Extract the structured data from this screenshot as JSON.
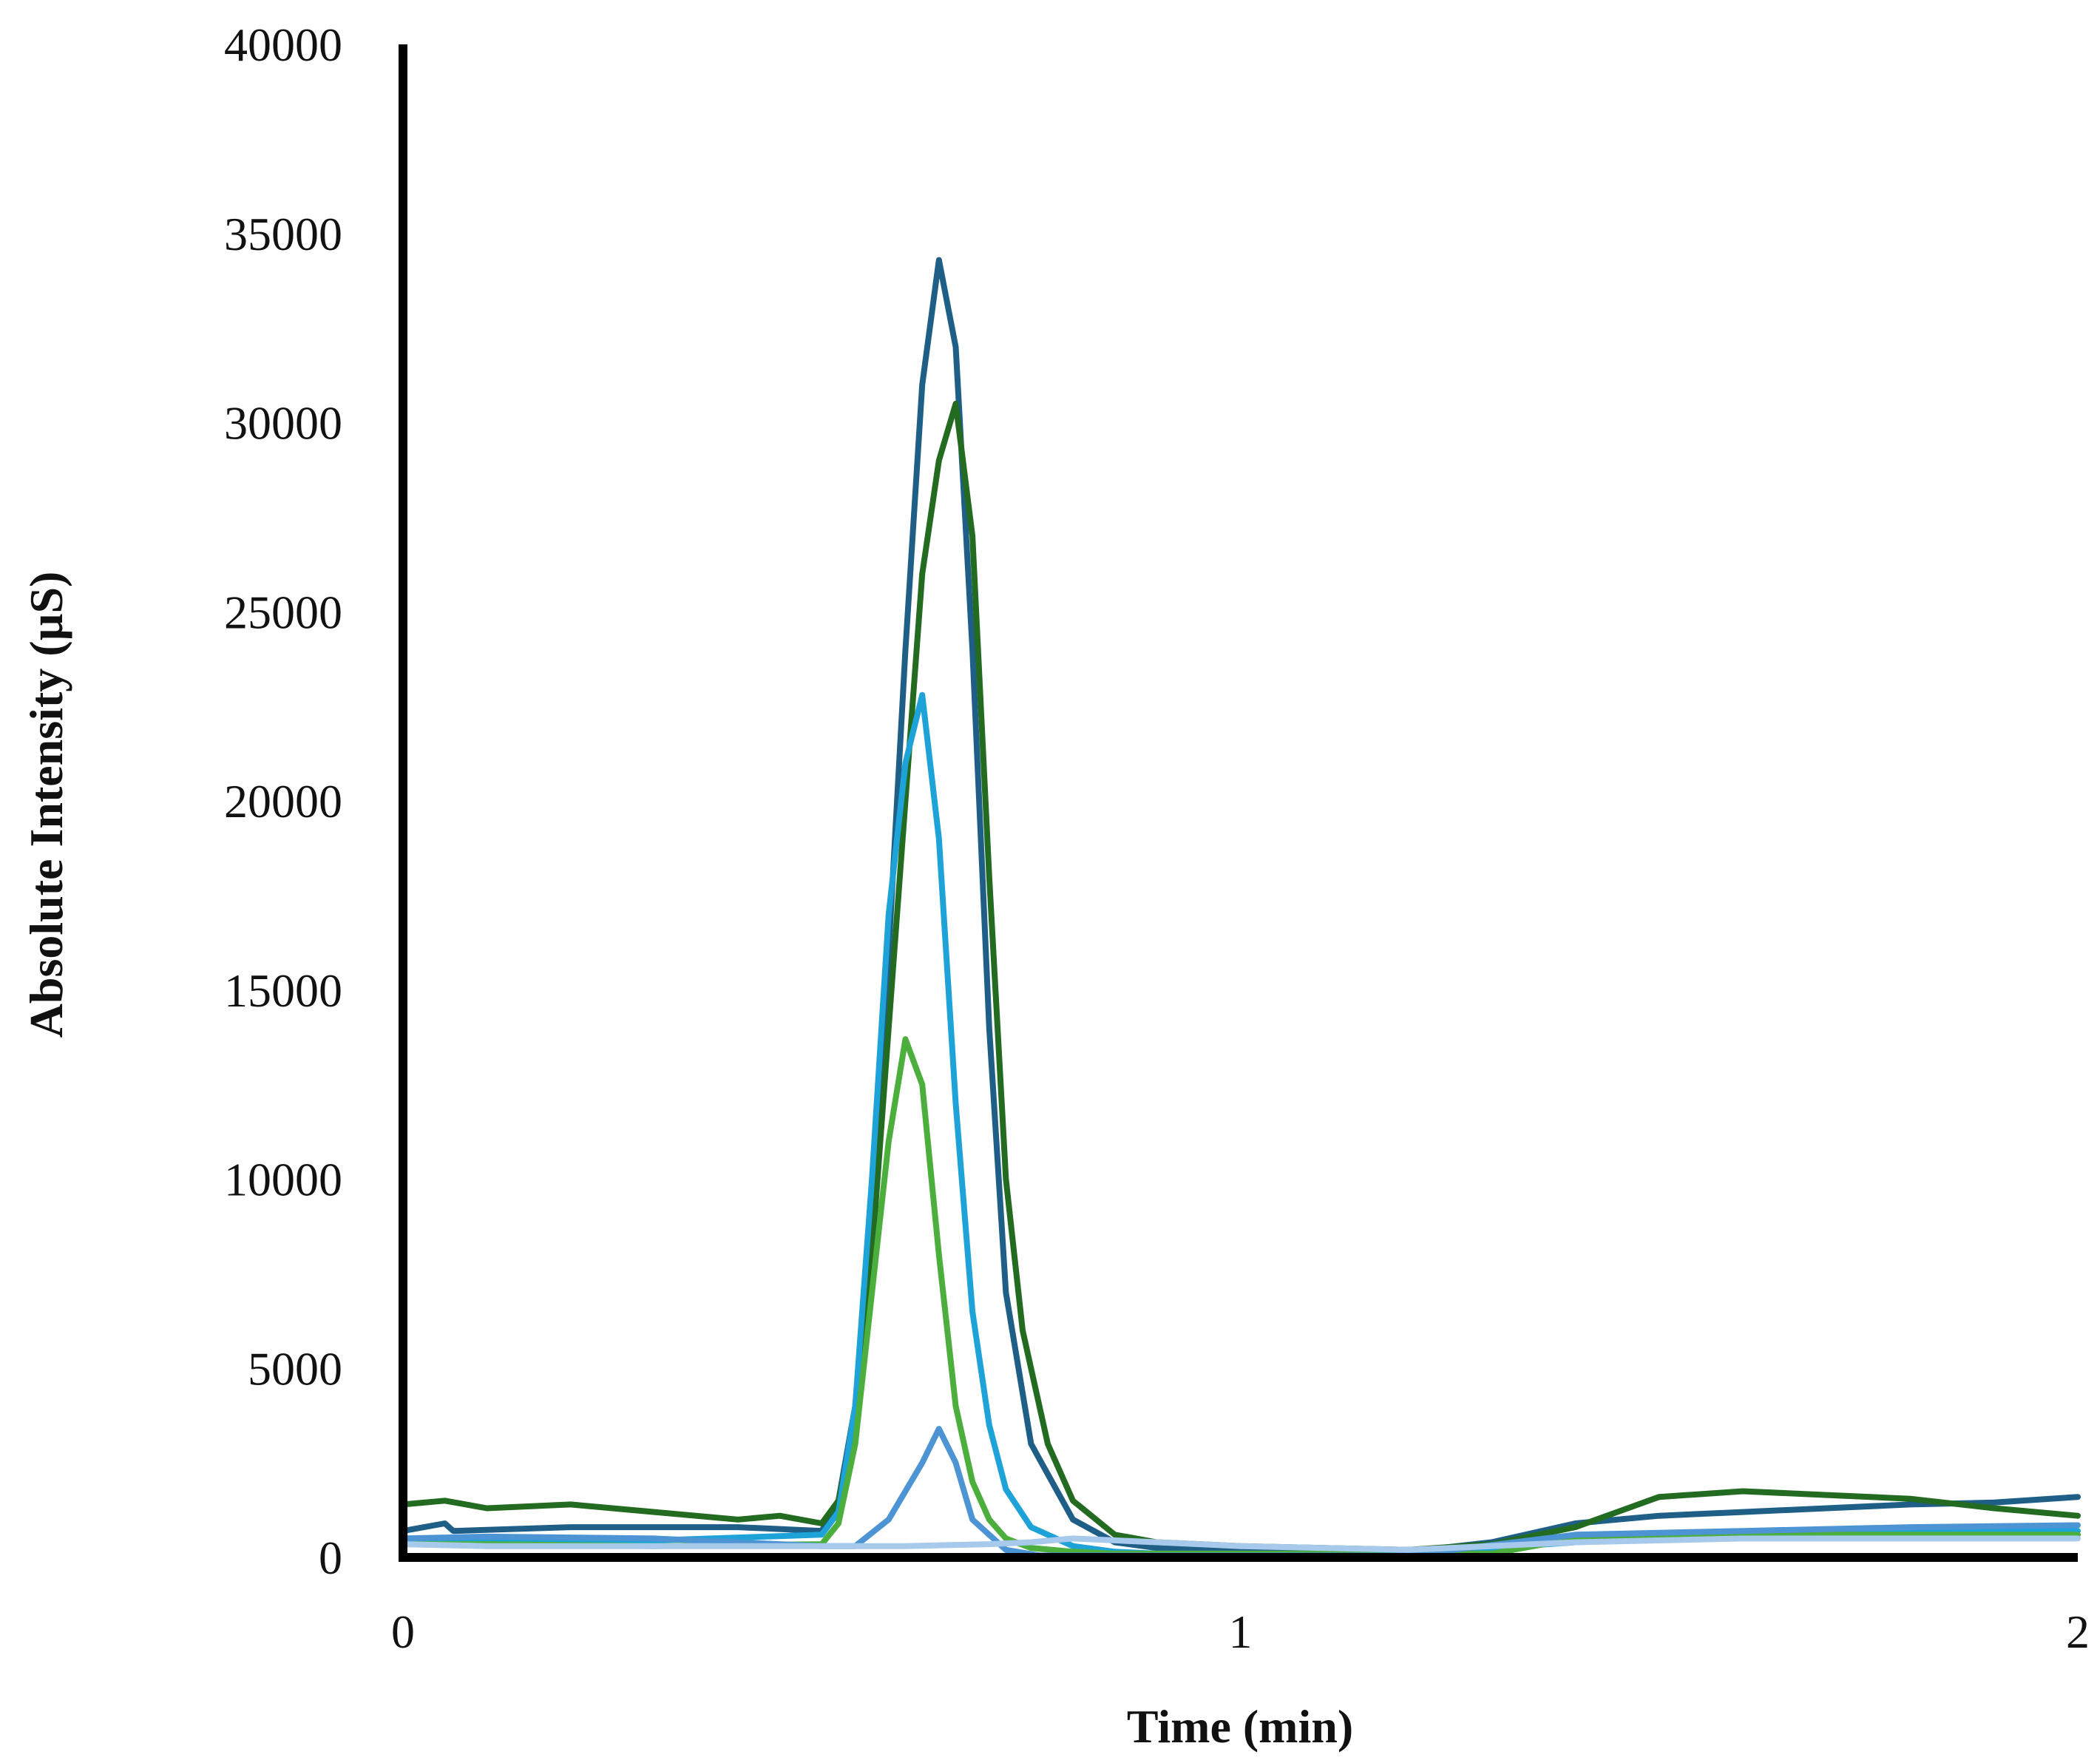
{
  "chart_data": {
    "type": "line",
    "title": "",
    "xlabel": "Time (min)",
    "ylabel": "Absolute Intensity (µS)",
    "xlim": [
      0,
      2
    ],
    "ylim": [
      0,
      40000
    ],
    "xticks": [
      "0",
      "1",
      "2"
    ],
    "yticks": [
      "0",
      "5000",
      "10000",
      "15000",
      "20000",
      "25000",
      "30000",
      "35000",
      "40000"
    ],
    "grid": false,
    "legend": "none",
    "series": [
      {
        "color": "#1f5f87",
        "x": [
          0,
          0.05,
          0.06,
          0.2,
          0.4,
          0.5,
          0.52,
          0.54,
          0.56,
          0.58,
          0.6,
          0.62,
          0.64,
          0.66,
          0.68,
          0.7,
          0.72,
          0.75,
          0.8,
          0.85,
          0.9,
          1.0,
          1.2,
          1.3,
          1.4,
          1.5,
          1.6,
          1.7,
          1.8,
          1.9,
          2.0
        ],
        "y": [
          700,
          900,
          700,
          800,
          800,
          700,
          1500,
          4000,
          9000,
          16000,
          24000,
          31000,
          34300,
          32000,
          24000,
          14000,
          7000,
          3000,
          1000,
          400,
          250,
          150,
          150,
          400,
          900,
          1100,
          1200,
          1300,
          1400,
          1450,
          1600
        ]
      },
      {
        "color": "#236b20",
        "x": [
          0,
          0.05,
          0.1,
          0.2,
          0.3,
          0.4,
          0.45,
          0.5,
          0.52,
          0.54,
          0.56,
          0.58,
          0.6,
          0.62,
          0.64,
          0.66,
          0.68,
          0.7,
          0.72,
          0.74,
          0.77,
          0.8,
          0.85,
          0.9,
          1.0,
          1.2,
          1.3,
          1.4,
          1.45,
          1.5,
          1.6,
          1.7,
          1.8,
          1.9,
          2.0
        ],
        "y": [
          1400,
          1500,
          1300,
          1400,
          1200,
          1000,
          1100,
          900,
          1500,
          3500,
          8000,
          14000,
          20000,
          26000,
          29000,
          30500,
          27000,
          18000,
          10000,
          6000,
          3000,
          1500,
          600,
          400,
          300,
          200,
          350,
          800,
          1200,
          1600,
          1750,
          1650,
          1550,
          1300,
          1100
        ]
      },
      {
        "color": "#1ea3d8",
        "x": [
          0,
          0.1,
          0.3,
          0.5,
          0.52,
          0.54,
          0.56,
          0.58,
          0.6,
          0.62,
          0.64,
          0.66,
          0.68,
          0.7,
          0.72,
          0.75,
          0.8,
          0.85,
          0.9,
          1.0,
          1.2,
          1.4,
          1.6,
          1.8,
          2.0
        ],
        "y": [
          500,
          500,
          450,
          600,
          1200,
          4000,
          10000,
          17000,
          21000,
          22800,
          19000,
          12000,
          6500,
          3500,
          1800,
          800,
          300,
          150,
          100,
          100,
          100,
          400,
          600,
          700,
          700
        ]
      },
      {
        "color": "#4cae3c",
        "x": [
          0,
          0.1,
          0.3,
          0.5,
          0.52,
          0.54,
          0.56,
          0.58,
          0.6,
          0.62,
          0.64,
          0.66,
          0.68,
          0.7,
          0.72,
          0.75,
          0.8,
          0.85,
          0.9,
          1.0,
          1.1,
          1.2,
          1.3,
          1.35,
          1.4,
          1.6,
          1.8,
          2.0
        ],
        "y": [
          350,
          350,
          300,
          350,
          900,
          3000,
          7000,
          11000,
          13700,
          12500,
          8000,
          4000,
          2000,
          1000,
          500,
          250,
          150,
          100,
          100,
          100,
          100,
          100,
          100,
          300,
          500,
          600,
          600,
          600
        ]
      },
      {
        "color": "#4c94d4",
        "x": [
          0,
          0.1,
          0.3,
          0.5,
          0.54,
          0.58,
          0.62,
          0.64,
          0.66,
          0.68,
          0.72,
          0.76,
          0.8,
          0.9,
          1.0,
          1.2,
          1.4,
          1.6,
          1.8,
          2.0
        ],
        "y": [
          500,
          550,
          500,
          300,
          300,
          1000,
          2500,
          3400,
          2500,
          1000,
          200,
          50,
          50,
          50,
          50,
          50,
          600,
          700,
          800,
          850
        ]
      },
      {
        "color": "#a6c9ec",
        "x": [
          0,
          0.1,
          0.3,
          0.5,
          0.6,
          0.7,
          0.75,
          0.8,
          0.9,
          1.0,
          1.2,
          1.4,
          1.6,
          1.8,
          2.0
        ],
        "y": [
          350,
          300,
          300,
          300,
          300,
          350,
          400,
          500,
          400,
          300,
          200,
          400,
          500,
          500,
          500
        ]
      }
    ]
  }
}
